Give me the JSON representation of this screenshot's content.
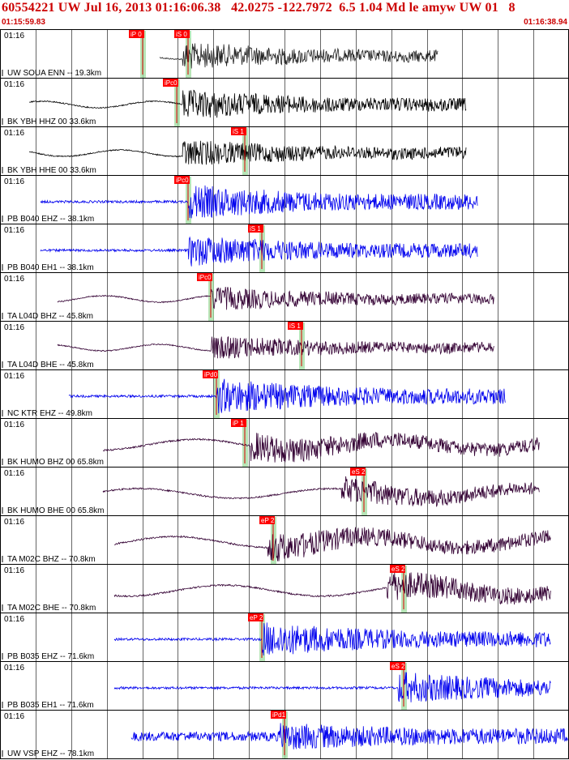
{
  "header": {
    "title": "60554221 UW Jul 16, 2013 01:16:06.38   42.0275 -122.7972  6.5 1.04 Md le amyw UW 01   8",
    "start_time": "01:15:59.83",
    "end_time": "01:16:38.94"
  },
  "chart_data": {
    "type": "line",
    "title": "60554221 UW Jul 16, 2013 01:16:06.38   42.0275 -122.7972  6.5 1.04 Md le amyw UW 01   8",
    "x_range": [
      "01:15:59.83",
      "01:16:38.94"
    ],
    "x_range_seconds": [
      0,
      39.11
    ],
    "grid": true,
    "traces": [
      {
        "label": "UW SOUA ENN -- 19.3km",
        "time_label": "01:16",
        "color": "#222222",
        "start": 0.28,
        "end": 0.77,
        "onset": 0.32,
        "amp": 0.45,
        "shape": "burst",
        "picks": [
          {
            "label": "iP 0",
            "t": 0.25
          },
          {
            "label": "iS 0",
            "t": 0.33
          }
        ]
      },
      {
        "label": "BK YBH HHZ 00 33.6km",
        "time_label": "01:16",
        "color": "#000000",
        "start": 0.05,
        "end": 0.82,
        "onset": 0.32,
        "amp": 0.5,
        "shape": "burst",
        "picks": [
          {
            "label": "iPc0",
            "t": 0.31
          }
        ]
      },
      {
        "label": "BK YBH HHE 00 33.6km",
        "time_label": "01:16",
        "color": "#000000",
        "start": 0.05,
        "end": 0.82,
        "onset": 0.32,
        "amp": 0.45,
        "shape": "burst",
        "picks": [
          {
            "label": "iS 1",
            "t": 0.43
          }
        ]
      },
      {
        "label": "PB B040 EHZ -- 38.1km",
        "time_label": "01:16",
        "color": "#0000ee",
        "start": 0.07,
        "end": 0.84,
        "onset": 0.33,
        "amp": 0.55,
        "shape": "noise",
        "picks": [
          {
            "label": "iPc0",
            "t": 0.33
          }
        ]
      },
      {
        "label": "PB B040 EH1 -- 38.1km",
        "time_label": "01:16",
        "color": "#0000ee",
        "start": 0.07,
        "end": 0.84,
        "onset": 0.33,
        "amp": 0.5,
        "shape": "noise",
        "picks": [
          {
            "label": "iS 1",
            "t": 0.46
          }
        ]
      },
      {
        "label": "TA L04D BHZ -- 45.8km",
        "time_label": "01:16",
        "color": "#330033",
        "start": 0.1,
        "end": 0.87,
        "onset": 0.37,
        "amp": 0.4,
        "shape": "burst",
        "picks": [
          {
            "label": "iPc0",
            "t": 0.37
          }
        ]
      },
      {
        "label": "TA L04D BHE -- 45.8km",
        "time_label": "01:16",
        "color": "#330033",
        "start": 0.1,
        "end": 0.87,
        "onset": 0.37,
        "amp": 0.4,
        "shape": "burst",
        "picks": [
          {
            "label": "iS 1",
            "t": 0.53
          }
        ]
      },
      {
        "label": "NC KTR EHZ -- 49.8km",
        "time_label": "01:16",
        "color": "#0000ee",
        "start": 0.12,
        "end": 0.89,
        "onset": 0.38,
        "amp": 0.55,
        "shape": "noise",
        "picks": [
          {
            "label": "iPd0",
            "t": 0.38
          }
        ]
      },
      {
        "label": "BK HUMO BHZ 00 65.8km",
        "time_label": "01:16",
        "color": "#330033",
        "start": 0.18,
        "end": 0.95,
        "onset": 0.44,
        "amp": 0.45,
        "shape": "longperiod",
        "picks": [
          {
            "label": "iP 1",
            "t": 0.43
          }
        ]
      },
      {
        "label": "BK HUMO BHE 00 65.8km",
        "time_label": "01:16",
        "color": "#330033",
        "start": 0.18,
        "end": 0.95,
        "onset": 0.6,
        "amp": 0.4,
        "shape": "longperiod",
        "picks": [
          {
            "label": "eS 2",
            "t": 0.64
          }
        ]
      },
      {
        "label": "TA M02C BHZ -- 70.8km",
        "time_label": "01:16",
        "color": "#330033",
        "start": 0.2,
        "end": 0.97,
        "onset": 0.47,
        "amp": 0.45,
        "shape": "longperiod",
        "picks": [
          {
            "label": "eP 2",
            "t": 0.48
          }
        ]
      },
      {
        "label": "TA M02C BHE -- 70.8km",
        "time_label": "01:16",
        "color": "#330033",
        "start": 0.2,
        "end": 0.97,
        "onset": 0.68,
        "amp": 0.45,
        "shape": "longperiod",
        "picks": [
          {
            "label": "eS 2",
            "t": 0.71
          }
        ]
      },
      {
        "label": "PB B035 EHZ -- 71.6km",
        "time_label": "01:16",
        "color": "#0000ee",
        "start": 0.2,
        "end": 0.97,
        "onset": 0.46,
        "amp": 0.55,
        "shape": "noise",
        "picks": [
          {
            "label": "eP 2",
            "t": 0.46
          }
        ]
      },
      {
        "label": "PB B035 EH1 -- 71.6km",
        "time_label": "01:16",
        "color": "#0000ee",
        "start": 0.2,
        "end": 0.97,
        "onset": 0.7,
        "amp": 0.5,
        "shape": "noise",
        "picks": [
          {
            "label": "eS 2",
            "t": 0.71
          }
        ]
      },
      {
        "label": "UW VSP EHZ -- 78.1km",
        "time_label": "01:16",
        "color": "#0000ee",
        "start": 0.23,
        "end": 1.0,
        "onset": 0.49,
        "amp": 0.35,
        "shape": "dense",
        "picks": [
          {
            "label": "iPd1",
            "t": 0.5
          }
        ]
      }
    ]
  }
}
